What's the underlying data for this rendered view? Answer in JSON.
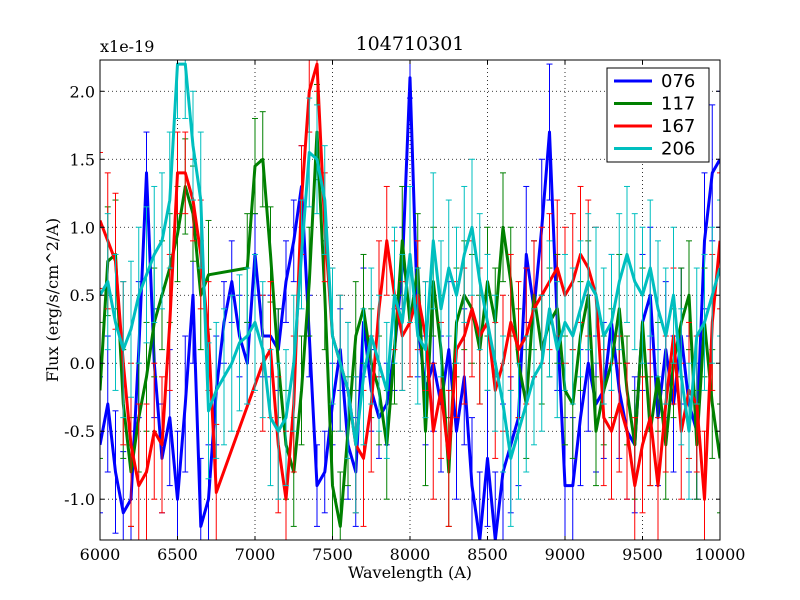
{
  "chart_data": {
    "type": "line",
    "title": "104710301",
    "xlabel": "Wavelength (A)",
    "ylabel": "Flux (erg/s/cm^2/A)",
    "y_scale_label": "x1e-19",
    "xlim": [
      6000,
      10000
    ],
    "ylim": [
      -1.3,
      2.23
    ],
    "x_ticks": [
      6000,
      6500,
      7000,
      7500,
      8000,
      8500,
      9000,
      9500,
      10000
    ],
    "x_tick_labels": [
      "6000",
      "6500",
      "7000",
      "7500",
      "8000",
      "8500",
      "9000",
      "9500",
      "10000"
    ],
    "y_ticks": [
      -1.0,
      -0.5,
      0.0,
      0.5,
      1.0,
      1.5,
      2.0
    ],
    "y_tick_labels": [
      "-1.0",
      "-0.5",
      "0.0",
      "0.5",
      "1.0",
      "1.5",
      "2.0"
    ],
    "grid": true,
    "legend_position": "top-right",
    "series": [
      {
        "name": "076",
        "color": "#0000ff",
        "x": [
          6000,
          6050,
          6100,
          6150,
          6200,
          6250,
          6300,
          6350,
          6400,
          6450,
          6500,
          6550,
          6600,
          6650,
          6700,
          6750,
          6800,
          6850,
          6900,
          6950,
          7000,
          7050,
          7100,
          7150,
          7200,
          7250,
          7300,
          7350,
          7400,
          7450,
          7500,
          7550,
          7600,
          7650,
          7700,
          7750,
          7800,
          7850,
          7900,
          7950,
          8000,
          8050,
          8100,
          8150,
          8200,
          8250,
          8300,
          8350,
          8400,
          8450,
          8500,
          8550,
          8600,
          8650,
          8700,
          8750,
          8800,
          8850,
          8900,
          8950,
          9000,
          9050,
          9100,
          9150,
          9200,
          9250,
          9300,
          9350,
          9400,
          9450,
          9500,
          9550,
          9600,
          9650,
          9700,
          9750,
          9800,
          9850,
          9900,
          9950,
          10000
        ],
        "y": [
          -0.6,
          -0.3,
          -0.8,
          -1.1,
          -1.0,
          0.1,
          1.4,
          0.0,
          -0.7,
          -0.4,
          -1.0,
          -0.3,
          0.5,
          -1.2,
          -1.0,
          -0.2,
          0.3,
          0.6,
          0.2,
          0.0,
          0.8,
          0.2,
          0.2,
          0.1,
          0.6,
          0.9,
          1.3,
          0.2,
          -0.9,
          -0.8,
          -0.3,
          0.1,
          -0.6,
          -0.8,
          0.3,
          -0.2,
          -0.4,
          -0.3,
          0.1,
          0.7,
          2.1,
          0.3,
          -0.2,
          0.0,
          -0.3,
          0.1,
          -0.5,
          -0.1,
          -0.9,
          -1.3,
          -0.7,
          -1.3,
          -0.8,
          -0.6,
          -0.4,
          0.8,
          0.4,
          1.0,
          1.7,
          0.3,
          -0.9,
          -0.9,
          -0.4,
          0.0,
          -0.3,
          -0.2,
          0.3,
          -0.2,
          -0.5,
          -0.6,
          0.3,
          0.5,
          -0.4,
          0.1,
          -0.3,
          0.2,
          -0.3,
          -0.5,
          0.9,
          1.4,
          1.5
        ],
        "err": [
          0.5,
          0.5,
          0.45,
          0.45,
          0.5,
          0.5,
          0.3,
          0.4,
          0.4,
          0.5,
          0.5,
          0.5,
          0.5,
          0.5,
          0.4,
          0.4,
          0.3,
          0.3,
          0.3,
          0.3,
          0.3,
          0.3,
          0.3,
          0.3,
          0.3,
          0.3,
          0.3,
          0.3,
          0.3,
          0.3,
          0.3,
          0.3,
          0.4,
          0.4,
          0.4,
          0.3,
          0.3,
          0.3,
          0.3,
          0.3,
          0.15,
          0.4,
          0.4,
          0.5,
          0.5,
          0.5,
          0.5,
          0.5,
          0.5,
          0.5,
          0.5,
          0.5,
          0.5,
          0.5,
          0.5,
          0.5,
          0.5,
          0.5,
          0.5,
          0.5,
          0.5,
          0.5,
          0.5,
          0.5,
          0.5,
          0.5,
          0.5,
          0.5,
          0.5,
          0.5,
          0.5,
          0.5,
          0.5,
          0.5,
          0.5,
          0.5,
          0.5,
          0.5,
          0.5,
          0.5,
          0.5
        ]
      },
      {
        "name": "117",
        "color": "#008000",
        "x": [
          6000,
          6050,
          6100,
          6150,
          6200,
          6250,
          6300,
          6350,
          6400,
          6450,
          6500,
          6550,
          6600,
          6650,
          6700,
          6950,
          7000,
          7050,
          7100,
          7150,
          7200,
          7250,
          7300,
          7350,
          7400,
          7450,
          7500,
          7550,
          7600,
          7650,
          7700,
          7750,
          7800,
          7850,
          7900,
          7950,
          8000,
          8050,
          8100,
          8150,
          8200,
          8250,
          8300,
          8350,
          8400,
          8450,
          8500,
          8550,
          8600,
          8650,
          8700,
          8750,
          8800,
          8850,
          8900,
          8950,
          9000,
          9050,
          9100,
          9150,
          9200,
          9250,
          9300,
          9350,
          9400,
          9450,
          9500,
          9550,
          9600,
          9650,
          9700,
          9750,
          9800,
          9850,
          9900,
          9950,
          10000
        ],
        "y": [
          -0.2,
          0.75,
          0.8,
          -0.3,
          -0.8,
          -0.4,
          -0.1,
          0.3,
          0.5,
          0.7,
          0.95,
          1.3,
          1.1,
          0.5,
          0.65,
          0.7,
          1.45,
          1.5,
          0.8,
          0.0,
          -0.6,
          -0.8,
          -0.2,
          0.6,
          1.7,
          0.5,
          -0.9,
          -1.2,
          -0.5,
          0.2,
          0.4,
          0.0,
          -0.2,
          -0.6,
          0.1,
          0.9,
          0.3,
          0.7,
          -0.5,
          0.6,
          0.1,
          -0.8,
          0.3,
          0.5,
          0.4,
          0.1,
          0.6,
          0.3,
          1.0,
          0.6,
          0.0,
          -0.3,
          0.5,
          0.1,
          0.3,
          0.4,
          -0.2,
          -0.3,
          0.2,
          0.5,
          -0.5,
          -0.2,
          0.0,
          0.4,
          -0.2,
          -0.6,
          0.3,
          -0.5,
          -0.1,
          -0.6,
          0.0,
          0.3,
          0.5,
          -0.6,
          0.3,
          -0.3,
          -0.7
        ],
        "err": [
          0.5,
          0.4,
          0.4,
          0.4,
          0.4,
          0.4,
          0.4,
          0.4,
          0.4,
          0.4,
          0.35,
          0.35,
          0.35,
          0.4,
          0.4,
          0.4,
          0.35,
          0.35,
          0.35,
          0.4,
          0.4,
          0.4,
          0.4,
          0.4,
          0.35,
          0.4,
          0.4,
          0.4,
          0.4,
          0.4,
          0.4,
          0.4,
          0.4,
          0.4,
          0.4,
          0.4,
          0.4,
          0.4,
          0.4,
          0.4,
          0.4,
          0.4,
          0.4,
          0.4,
          0.4,
          0.4,
          0.4,
          0.4,
          0.4,
          0.4,
          0.4,
          0.4,
          0.4,
          0.4,
          0.4,
          0.4,
          0.4,
          0.4,
          0.4,
          0.4,
          0.4,
          0.4,
          0.4,
          0.4,
          0.4,
          0.4,
          0.4,
          0.4,
          0.4,
          0.4,
          0.4,
          0.4,
          0.4,
          0.4,
          0.4,
          0.4,
          0.4
        ]
      },
      {
        "name": "167",
        "color": "#ff0000",
        "x": [
          6000,
          6050,
          6100,
          6150,
          6200,
          6250,
          6300,
          6350,
          6400,
          6450,
          6500,
          6550,
          6600,
          6650,
          6700,
          6750,
          7050,
          7100,
          7150,
          7200,
          7250,
          7300,
          7350,
          7400,
          7450,
          7500,
          7550,
          7600,
          7650,
          7700,
          7750,
          7800,
          7850,
          7900,
          7950,
          8000,
          8050,
          8100,
          8150,
          8200,
          8250,
          8300,
          8350,
          8400,
          8450,
          8500,
          8550,
          8600,
          8650,
          8700,
          8750,
          8800,
          8850,
          8900,
          8950,
          9000,
          9050,
          9100,
          9150,
          9200,
          9250,
          9300,
          9350,
          9400,
          9450,
          9500,
          9550,
          9600,
          9650,
          9700,
          9750,
          9800,
          9850,
          9900,
          9950,
          10000
        ],
        "y": [
          1.05,
          0.9,
          0.75,
          0.0,
          -0.6,
          -0.9,
          -0.8,
          -0.5,
          -0.6,
          0.3,
          1.4,
          1.4,
          1.2,
          0.8,
          0.2,
          -0.95,
          0.0,
          0.1,
          -0.6,
          -1.0,
          -0.3,
          1.2,
          2.0,
          2.2,
          1.0,
          0.2,
          0.0,
          -0.2,
          -0.6,
          -0.7,
          -0.3,
          0.4,
          0.9,
          0.5,
          0.2,
          0.3,
          0.5,
          0.2,
          -0.5,
          -0.2,
          -0.7,
          0.1,
          0.2,
          0.4,
          0.2,
          0.3,
          -0.2,
          0.0,
          0.3,
          0.1,
          0.2,
          0.4,
          0.5,
          0.6,
          0.7,
          0.5,
          0.6,
          0.8,
          0.7,
          0.5,
          -0.4,
          -0.5,
          -0.3,
          -0.5,
          -0.9,
          -0.6,
          -0.4,
          -0.9,
          -0.3,
          0.2,
          -0.5,
          -0.2,
          -0.3,
          -1.0,
          0.3,
          0.9
        ],
        "err": [
          0.5,
          0.5,
          0.5,
          0.6,
          0.6,
          0.6,
          0.5,
          0.5,
          0.5,
          0.5,
          0.3,
          0.3,
          0.3,
          0.4,
          0.4,
          0.5,
          0.5,
          0.5,
          0.5,
          0.5,
          0.5,
          0.4,
          0.3,
          0.2,
          0.4,
          0.5,
          0.5,
          0.5,
          0.5,
          0.5,
          0.5,
          0.5,
          0.4,
          0.4,
          0.4,
          0.4,
          0.4,
          0.4,
          0.5,
          0.5,
          0.5,
          0.5,
          0.5,
          0.5,
          0.5,
          0.5,
          0.5,
          0.5,
          0.5,
          0.5,
          0.5,
          0.5,
          0.5,
          0.5,
          0.5,
          0.5,
          0.5,
          0.5,
          0.5,
          0.5,
          0.5,
          0.5,
          0.5,
          0.5,
          0.5,
          0.5,
          0.5,
          0.5,
          0.5,
          0.5,
          0.5,
          0.5,
          0.5,
          0.5,
          0.5,
          0.5
        ]
      },
      {
        "name": "206",
        "color": "#00bfbf",
        "x": [
          6000,
          6050,
          6100,
          6150,
          6200,
          6250,
          6300,
          6350,
          6400,
          6450,
          6500,
          6550,
          6600,
          6650,
          6700,
          6750,
          6800,
          6850,
          6900,
          6950,
          7000,
          7050,
          7100,
          7150,
          7200,
          7250,
          7300,
          7350,
          7400,
          7450,
          7500,
          7550,
          7600,
          7650,
          7700,
          7750,
          7800,
          7850,
          7900,
          7950,
          8000,
          8050,
          8100,
          8150,
          8200,
          8250,
          8300,
          8350,
          8400,
          8450,
          8500,
          8550,
          8600,
          8650,
          8700,
          8750,
          8800,
          8850,
          8900,
          8950,
          9000,
          9050,
          9100,
          9150,
          9200,
          9250,
          9300,
          9350,
          9400,
          9450,
          9500,
          9550,
          9600,
          9650,
          9700,
          9750,
          9800,
          9850,
          9900,
          9950,
          10000
        ],
        "y": [
          0.5,
          0.6,
          0.3,
          0.1,
          0.25,
          0.5,
          0.65,
          0.8,
          0.9,
          1.2,
          2.2,
          2.2,
          1.6,
          1.2,
          -0.35,
          -0.2,
          -0.1,
          0.0,
          0.15,
          0.2,
          0.3,
          0.1,
          -0.4,
          -0.5,
          -0.4,
          0.0,
          0.8,
          1.55,
          1.5,
          1.2,
          0.2,
          0.0,
          -0.2,
          -0.6,
          -0.1,
          0.2,
          0.0,
          -0.2,
          0.5,
          0.3,
          0.8,
          0.2,
          0.1,
          0.9,
          0.4,
          0.7,
          0.5,
          0.8,
          1.0,
          0.6,
          0.3,
          0.0,
          -0.3,
          -0.7,
          -0.5,
          -0.3,
          -0.1,
          0.0,
          0.4,
          0.1,
          0.3,
          0.2,
          0.4,
          0.6,
          0.5,
          0.2,
          0.3,
          0.6,
          0.8,
          0.6,
          0.5,
          0.7,
          0.4,
          0.2,
          0.5,
          -0.1,
          -0.5,
          0.2,
          0.3,
          0.5,
          0.7
        ],
        "err": [
          0.5,
          0.5,
          0.5,
          0.5,
          0.5,
          0.5,
          0.5,
          0.5,
          0.5,
          0.5,
          0.4,
          0.4,
          0.4,
          0.5,
          0.5,
          0.5,
          0.5,
          0.5,
          0.5,
          0.5,
          0.5,
          0.5,
          0.5,
          0.5,
          0.5,
          0.5,
          0.4,
          0.4,
          0.4,
          0.4,
          0.5,
          0.5,
          0.5,
          0.5,
          0.5,
          0.5,
          0.5,
          0.5,
          0.5,
          0.5,
          0.5,
          0.5,
          0.5,
          0.5,
          0.5,
          0.5,
          0.5,
          0.5,
          0.5,
          0.5,
          0.5,
          0.5,
          0.5,
          0.5,
          0.5,
          0.5,
          0.5,
          0.5,
          0.5,
          0.5,
          0.5,
          0.5,
          0.5,
          0.5,
          0.5,
          0.5,
          0.5,
          0.5,
          0.5,
          0.5,
          0.5,
          0.5,
          0.5,
          0.5,
          0.5,
          0.5,
          0.5,
          0.5,
          0.5,
          0.5,
          0.5
        ]
      }
    ]
  }
}
